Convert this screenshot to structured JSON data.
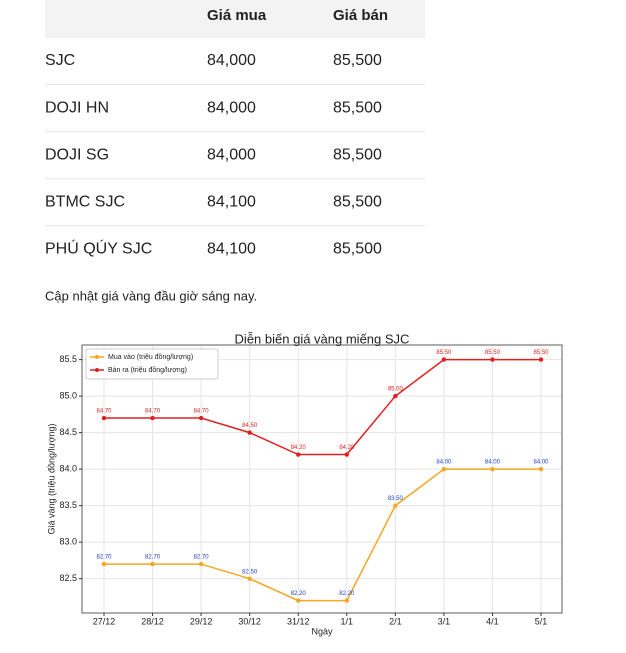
{
  "table": {
    "header": [
      "Giá mua",
      "Giá bán"
    ],
    "rows": [
      [
        "SJC",
        "84,000",
        "85,500"
      ],
      [
        "DOJI HN",
        "84,000",
        "85,500"
      ],
      [
        "DOJI SG",
        "84,000",
        "85,500"
      ],
      [
        "BTMC SJC",
        "84,100",
        "85,500"
      ],
      [
        "PHÚ QÚY SJC",
        "84,100",
        "85,500"
      ]
    ]
  },
  "caption": "Cập nhật giá vàng đầu giờ sáng nay.",
  "chart_data": {
    "type": "line",
    "title": "Diễn biến giá vàng miếng SJC",
    "xlabel": "Ngày",
    "ylabel": "Giá vàng (triệu đồng/lượng)",
    "categories": [
      "27/12",
      "28/12",
      "29/12",
      "30/12",
      "31/12",
      "1/1",
      "2/1",
      "3/1",
      "4/1",
      "5/1"
    ],
    "series": [
      {
        "name": "Mua vào (triệu đồng/lượng)",
        "color": "#f5a623",
        "label_color": "#1f3fd0",
        "values": [
          82.7,
          82.7,
          82.7,
          82.5,
          82.2,
          82.2,
          83.5,
          84.0,
          84.0,
          84.0
        ],
        "value_labels": [
          "82.70",
          "82.70",
          "82.70",
          "82.50",
          "82.20",
          "82.20",
          "83.50",
          "84.00",
          "84.00",
          "84.00"
        ]
      },
      {
        "name": "Bán ra (triệu đồng/lượng)",
        "color": "#e02020",
        "label_color": "#e02020",
        "values": [
          84.7,
          84.7,
          84.7,
          84.5,
          84.2,
          84.2,
          85.0,
          85.5,
          85.5,
          85.5
        ],
        "value_labels": [
          "84.70",
          "84.70",
          "84.70",
          "84.50",
          "84.20",
          "84.20",
          "85.00",
          "85.50",
          "85.50",
          "85.50"
        ]
      }
    ],
    "ylim": [
      82.03,
      85.7
    ],
    "yticks": [
      82.5,
      {
        "value": 83,
        "label": "83.0"
      },
      83.5,
      {
        "value": 84,
        "label": "84.0"
      },
      84.5,
      {
        "value": 85,
        "label": "85.0"
      },
      85.5
    ],
    "grid": true,
    "legend": "upper left"
  }
}
